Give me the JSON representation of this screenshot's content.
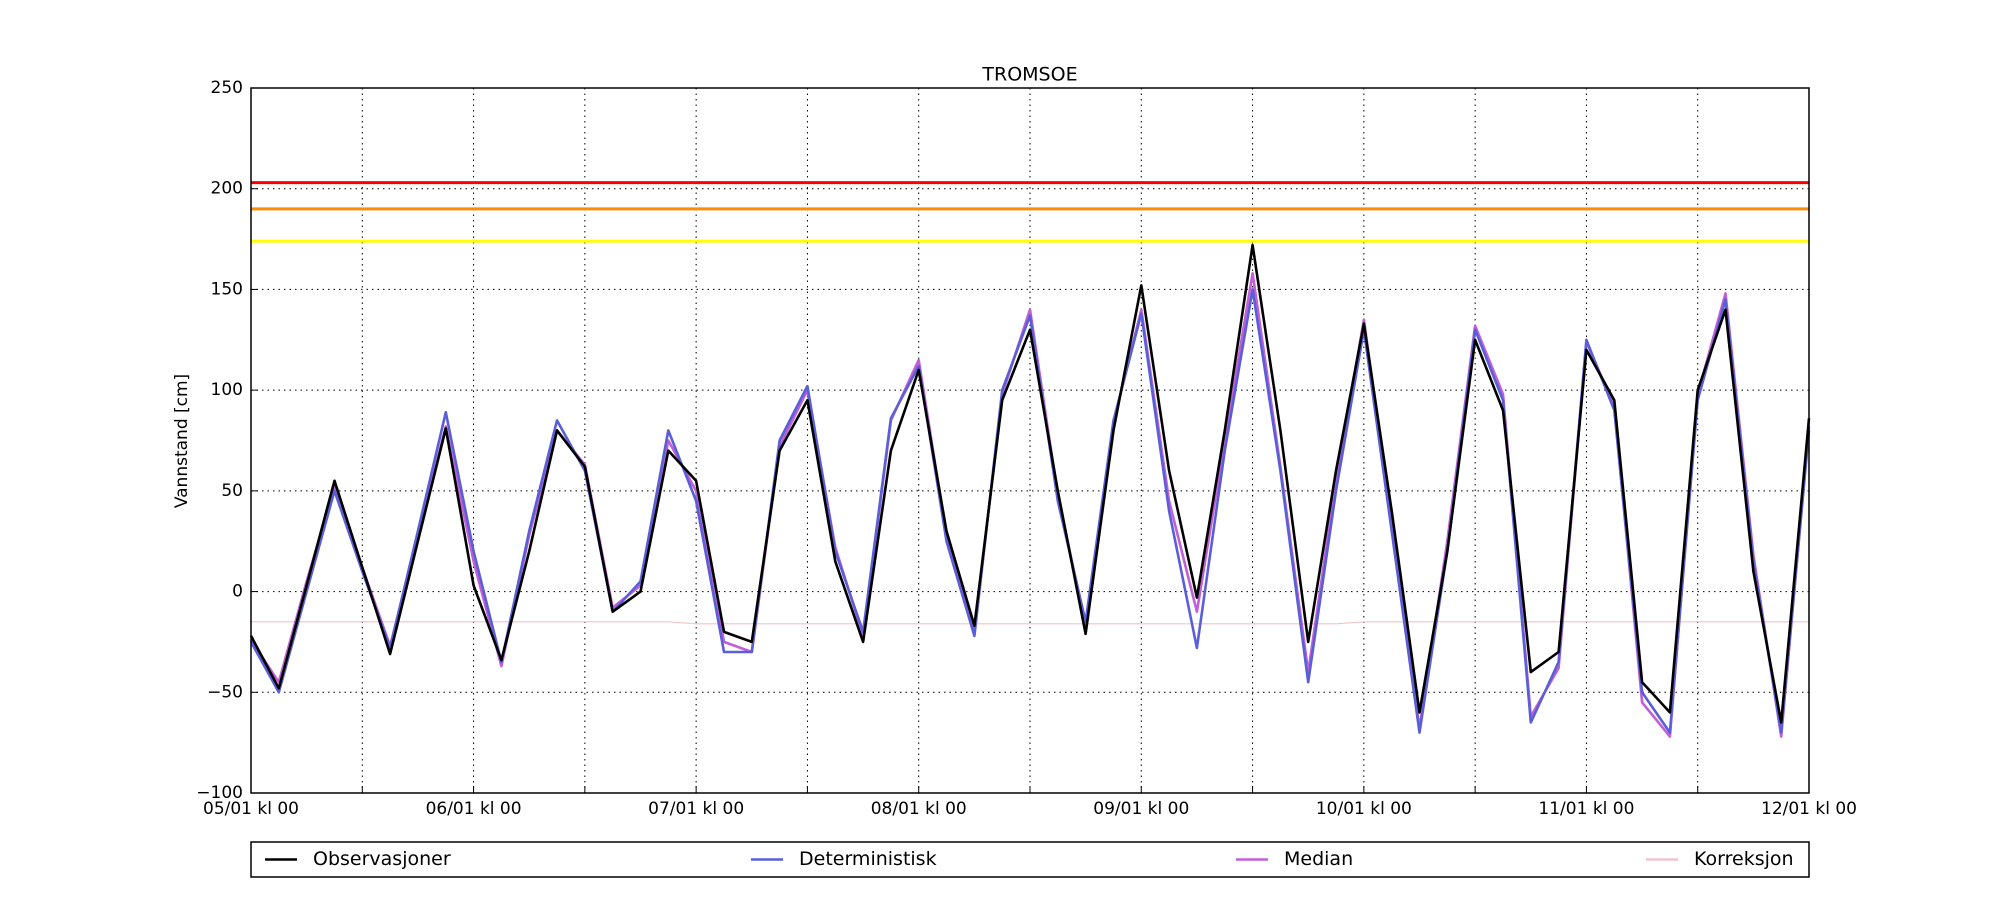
{
  "chart_data": {
    "type": "line",
    "title": "TROMSOE",
    "y_label": "Vannstand [cm]",
    "x": [
      0,
      3,
      6,
      9,
      12,
      15,
      18,
      21,
      24,
      27,
      30,
      33,
      36,
      39,
      42,
      45,
      48,
      51,
      54,
      57,
      60,
      63,
      66,
      69,
      72,
      75,
      78,
      81,
      84,
      87,
      90,
      93,
      96,
      99,
      102,
      105,
      108,
      111,
      114,
      117,
      120,
      123,
      126,
      129,
      132,
      135,
      138,
      141,
      144,
      147,
      150,
      153,
      156,
      159,
      162,
      165,
      168
    ],
    "series": [
      {
        "name": "Observasjoner",
        "color": "#000000",
        "values": [
          -22,
          -48,
          3,
          55,
          12,
          -31,
          25,
          81,
          3,
          -34,
          20,
          80,
          62,
          -10,
          0,
          70,
          55,
          -20,
          -25,
          70,
          95,
          15,
          -25,
          70,
          110,
          30,
          -17,
          95,
          130,
          50,
          -21,
          80,
          152,
          60,
          -3,
          80,
          172,
          80,
          -25,
          60,
          133,
          40,
          -60,
          20,
          125,
          90,
          -40,
          -30,
          120,
          95,
          -45,
          -60,
          100,
          140,
          10,
          -65,
          86
        ]
      },
      {
        "name": "Deterministisk",
        "color": "#5a5fd8",
        "values": [
          -25,
          -50,
          0,
          50,
          10,
          -28,
          30,
          89,
          20,
          -35,
          30,
          85,
          60,
          -10,
          5,
          80,
          45,
          -30,
          -30,
          75,
          102,
          20,
          -20,
          86,
          112,
          25,
          -22,
          100,
          137,
          45,
          -15,
          85,
          138,
          40,
          -28,
          70,
          150,
          60,
          -45,
          50,
          130,
          30,
          -70,
          20,
          130,
          95,
          -65,
          -35,
          125,
          90,
          -50,
          -70,
          95,
          145,
          15,
          -70,
          80
        ]
      },
      {
        "name": "Median",
        "color": "#c25fd8",
        "values": [
          -24,
          -45,
          5,
          52,
          12,
          -27,
          28,
          82,
          15,
          -37,
          28,
          80,
          63,
          -8,
          3,
          75,
          50,
          -25,
          -30,
          72,
          100,
          22,
          -22,
          85,
          115,
          28,
          -20,
          98,
          140,
          48,
          -17,
          84,
          140,
          45,
          -10,
          75,
          158,
          62,
          -40,
          55,
          135,
          35,
          -68,
          25,
          132,
          98,
          -62,
          -38,
          124,
          92,
          -55,
          -72,
          98,
          148,
          18,
          -72,
          82
        ]
      },
      {
        "name": "Korreksjon",
        "color": "#f4c4cc",
        "values": [
          -15,
          -15,
          -15,
          -15,
          -15,
          -15,
          -15,
          -15,
          -15,
          -15,
          -15,
          -15,
          -15,
          -15,
          -15,
          -15,
          -16,
          -16,
          -16,
          -16,
          -16,
          -16,
          -16,
          -16,
          -16,
          -16,
          -16,
          -16,
          -16,
          -16,
          -16,
          -16,
          -16,
          -16,
          -16,
          -16,
          -16,
          -16,
          -16,
          -16,
          -15,
          -15,
          -15,
          -15,
          -15,
          -15,
          -15,
          -15,
          -15,
          -15,
          -15,
          -15,
          -15,
          -15,
          -15,
          -15,
          -15
        ]
      }
    ],
    "thresholds": [
      {
        "value": 203,
        "color": "#ff0000"
      },
      {
        "value": 190,
        "color": "#ff8c00"
      },
      {
        "value": 174,
        "color": "#ffff00"
      }
    ],
    "xlim": [
      0,
      168
    ],
    "xticks": [
      {
        "value": 0,
        "label": "05/01 kl 00"
      },
      {
        "value": 24,
        "label": "06/01 kl 00"
      },
      {
        "value": 48,
        "label": "07/01 kl 00"
      },
      {
        "value": 72,
        "label": "08/01 kl 00"
      },
      {
        "value": 96,
        "label": "09/01 kl 00"
      },
      {
        "value": 120,
        "label": "10/01 kl 00"
      },
      {
        "value": 144,
        "label": "11/01 kl 00"
      },
      {
        "value": 168,
        "label": "12/01 kl 00"
      }
    ],
    "xminorticks": [
      12,
      36,
      60,
      84,
      108,
      132,
      156
    ],
    "ylim": [
      -100,
      250
    ],
    "yticks": [
      {
        "value": -100,
        "label": "−100"
      },
      {
        "value": -50,
        "label": "−50"
      },
      0,
      50,
      100,
      150,
      200,
      250
    ],
    "grid": true,
    "legend": "bottom"
  }
}
